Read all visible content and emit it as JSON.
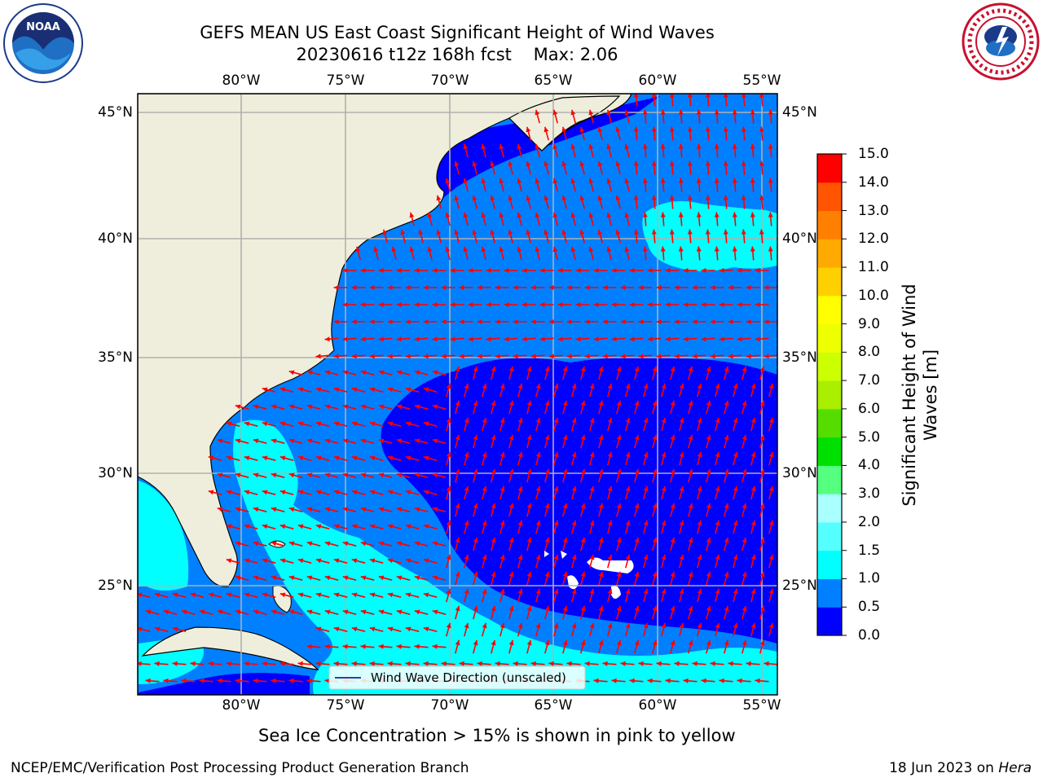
{
  "title": {
    "line1": "GEFS MEAN US East Coast Significant Height of Wind Waves",
    "line2": "20230616 t12z 168h fcst    Max: 2.06"
  },
  "logos": {
    "left_name": "noaa-logo",
    "left_text": "NOAA",
    "right_name": "nws-logo",
    "right_text": "NATIONAL WEATHER SERVICE"
  },
  "map": {
    "lon_ticks": [
      "80°W",
      "75°W",
      "70°W",
      "65°W",
      "60°W",
      "55°W"
    ],
    "lat_ticks": [
      "45°N",
      "40°N",
      "35°N",
      "30°N",
      "25°N"
    ],
    "lon_range": [
      -85,
      -54.2
    ],
    "lat_range": [
      20.5,
      45.9
    ],
    "grid": true,
    "colors": {
      "land": "#efeedc",
      "coast": "#000000",
      "grid": "#b0b0b0",
      "arrows": "#ff0000"
    },
    "legend": {
      "label": "Wind Wave Direction (unscaled)",
      "position": "bottom-center"
    }
  },
  "colorbar": {
    "label": "Significant Height of Wind Waves [m]",
    "label_line1": "Significant Height of Wind",
    "label_line2": "Waves [m]",
    "ticks": [
      "0.0",
      "0.5",
      "1.0",
      "1.5",
      "2.0",
      "3.0",
      "4.0",
      "5.0",
      "6.0",
      "7.0",
      "8.0",
      "9.0",
      "10.0",
      "11.0",
      "12.0",
      "13.0",
      "14.0",
      "15.0"
    ],
    "levels": [
      0.0,
      0.5,
      1.0,
      1.5,
      2.0,
      3.0,
      4.0,
      5.0,
      6.0,
      7.0,
      8.0,
      9.0,
      10.0,
      11.0,
      12.0,
      13.0,
      14.0,
      15.0
    ],
    "colors": [
      "#0000ff",
      "#0080ff",
      "#00ffff",
      "#55ffff",
      "#aaffff",
      "#55ff80",
      "#00e000",
      "#55dd00",
      "#aaee00",
      "#ccff00",
      "#eeff00",
      "#ffff00",
      "#ffd000",
      "#ffaa00",
      "#ff8000",
      "#ff5500",
      "#ff0000"
    ]
  },
  "notes": {
    "sea_ice": "Sea Ice Concentration > 15% is shown in pink to yellow"
  },
  "footer": {
    "left": "NCEP/EMC/Verification Post Processing Product Generation Branch",
    "date": "18 Jun 2023 on ",
    "machine": "Hera"
  }
}
